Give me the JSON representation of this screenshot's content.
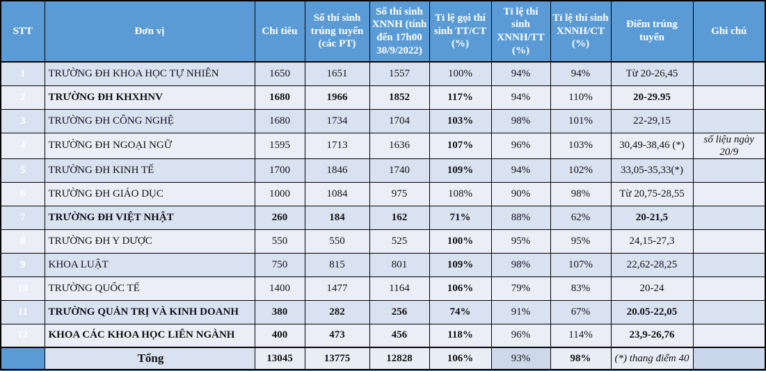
{
  "colors": {
    "header_blue": "#5b9bd5",
    "stripe_odd": "#d9e2f1",
    "stripe_even": "#ebeef7",
    "ratio_col_blue": "#cdd9eb",
    "highlight_orange": "#ffc000",
    "highlight_yellow": "#ffff00",
    "total_light_blue": "#bdd7ee",
    "total_strong_blue": "#2e75b6",
    "alert_red": "#c00000"
  },
  "table": {
    "columns": [
      {
        "key": "stt",
        "label": "STT"
      },
      {
        "key": "name",
        "label": "Đơn vị"
      },
      {
        "key": "chi_tieu",
        "label": "Chỉ tiêu"
      },
      {
        "key": "trung_tuyen",
        "label": "Số thí sinh trúng tuyển (các PT)"
      },
      {
        "key": "xnnh",
        "label": "Số thí sinh XNNH (tính đến 17h00 30/9/2022)"
      },
      {
        "key": "tt_ct",
        "label": "Tỉ lệ gọi thí sinh TT/CT (%)"
      },
      {
        "key": "xnnh_tt",
        "label": "Tỉ lệ thí sinh XNNH/TT (%)"
      },
      {
        "key": "xnnh_ct",
        "label": "Tỉ lệ thí sinh XNNH/CT (%)"
      },
      {
        "key": "diem",
        "label": "Điểm trúng tuyển"
      },
      {
        "key": "ghi_chu",
        "label": "Ghi chú"
      }
    ],
    "rows": [
      {
        "row_class": "odd",
        "cells": {
          "stt": "1",
          "name": "TRƯỜNG ĐH KHOA HỌC TỰ NHIÊN",
          "chi_tieu": "1650",
          "trung_tuyen": "1651",
          "xnnh": "1557",
          "tt_ct": "100%",
          "xnnh_tt": "94%",
          "xnnh_ct": "94%",
          "diem": "Từ 20-26,45",
          "ghi_chu": ""
        },
        "cell_classes": {}
      },
      {
        "row_class": "even",
        "cells": {
          "stt": "2",
          "name": "TRƯỜNG ĐH KHXHNV",
          "chi_tieu": "1680",
          "trung_tuyen": "1966",
          "xnnh": "1852",
          "tt_ct": "117%",
          "xnnh_tt": "94%",
          "xnnh_ct": "110%",
          "diem": "20-29.95",
          "ghi_chu": ""
        },
        "cell_classes": {
          "name": "bg-orange red",
          "chi_tieu": "red",
          "trung_tuyen": "red",
          "xnnh": "red",
          "tt_ct": "red",
          "xnnh_ct": "bg-orange",
          "diem": "red"
        }
      },
      {
        "row_class": "odd",
        "cells": {
          "stt": "3",
          "name": "TRƯỜNG ĐH CÔNG NGHỆ",
          "chi_tieu": "1680",
          "trung_tuyen": "1734",
          "xnnh": "1704",
          "tt_ct": "103%",
          "xnnh_tt": "98%",
          "xnnh_ct": "101%",
          "diem": "22-29,15",
          "ghi_chu": ""
        },
        "cell_classes": {
          "tt_ct": "red"
        }
      },
      {
        "row_class": "even",
        "cells": {
          "stt": "4",
          "name": "TRƯỜNG ĐH NGOẠI NGỮ",
          "chi_tieu": "1595",
          "trung_tuyen": "1713",
          "xnnh": "1636",
          "tt_ct": "107%",
          "xnnh_tt": "96%",
          "xnnh_ct": "103%",
          "diem": "30,49-38,46 (*)",
          "ghi_chu": "số liệu ngày 20/9"
        },
        "cell_classes": {
          "name": "bg-yellow",
          "chi_tieu": "bg-white",
          "trung_tuyen": "bg-white",
          "xnnh": "bg-white",
          "tt_ct": "red",
          "ghi_chu": "bg-yellow note"
        }
      },
      {
        "row_class": "odd",
        "cells": {
          "stt": "5",
          "name": "TRƯỜNG ĐH KINH TẾ",
          "chi_tieu": "1700",
          "trung_tuyen": "1846",
          "xnnh": "1740",
          "tt_ct": "109%",
          "xnnh_tt": "94%",
          "xnnh_ct": "102%",
          "diem": "33,05-35,33(*)",
          "ghi_chu": ""
        },
        "cell_classes": {
          "tt_ct": "red"
        }
      },
      {
        "row_class": "even",
        "cells": {
          "stt": "6",
          "name": "TRƯỜNG ĐH GIÁO DỤC",
          "chi_tieu": "1000",
          "trung_tuyen": "1084",
          "xnnh": "975",
          "tt_ct": "108%",
          "xnnh_tt": "90%",
          "xnnh_ct": "98%",
          "diem": "Từ 20,75-28,55",
          "ghi_chu": ""
        },
        "cell_classes": {}
      },
      {
        "row_class": "odd",
        "cells": {
          "stt": "7",
          "name": "TRƯỜNG ĐH VIỆT NHẬT",
          "chi_tieu": "260",
          "trung_tuyen": "184",
          "xnnh": "162",
          "tt_ct": "71%",
          "xnnh_tt": "88%",
          "xnnh_ct": "62%",
          "diem": "20-21,5",
          "ghi_chu": ""
        },
        "cell_classes": {
          "name": "red",
          "chi_tieu": "red",
          "trung_tuyen": "red",
          "xnnh": "red",
          "tt_ct": "red",
          "diem": "red"
        }
      },
      {
        "row_class": "even",
        "cells": {
          "stt": "8",
          "name": "TRƯỜNG ĐH Y DƯỢC",
          "chi_tieu": "550",
          "trung_tuyen": "550",
          "xnnh": "525",
          "tt_ct": "100%",
          "xnnh_tt": "95%",
          "xnnh_ct": "95%",
          "diem": "24,15-27,3",
          "ghi_chu": ""
        },
        "cell_classes": {
          "tt_ct": "red"
        }
      },
      {
        "row_class": "odd",
        "cells": {
          "stt": "9",
          "name": "KHOA LUẬT",
          "chi_tieu": "750",
          "trung_tuyen": "815",
          "xnnh": "801",
          "tt_ct": "109%",
          "xnnh_tt": "98%",
          "xnnh_ct": "107%",
          "diem": "22,62-28,25",
          "ghi_chu": ""
        },
        "cell_classes": {
          "tt_ct": "red"
        }
      },
      {
        "row_class": "even",
        "cells": {
          "stt": "10",
          "name": "TRƯỜNG QUỐC TẾ",
          "chi_tieu": "1400",
          "trung_tuyen": "1477",
          "xnnh": "1164",
          "tt_ct": "106%",
          "xnnh_tt": "79%",
          "xnnh_ct": "83%",
          "diem": "20-24",
          "ghi_chu": ""
        },
        "cell_classes": {
          "tt_ct": "red"
        }
      },
      {
        "row_class": "odd",
        "cells": {
          "stt": "11",
          "name": "TRƯỜNG QUẢN TRỊ VÀ KINH DOANH",
          "chi_tieu": "380",
          "trung_tuyen": "282",
          "xnnh": "256",
          "tt_ct": "74%",
          "xnnh_tt": "91%",
          "xnnh_ct": "67%",
          "diem": "20.05-22,05",
          "ghi_chu": ""
        },
        "cell_classes": {
          "name": "red",
          "chi_tieu": "red",
          "trung_tuyen": "red",
          "xnnh": "red",
          "tt_ct": "red",
          "diem": "red"
        }
      },
      {
        "row_class": "even",
        "cells": {
          "stt": "12",
          "name": "KHOA CÁC KHOA HỌC LIÊN NGÀNH",
          "chi_tieu": "400",
          "trung_tuyen": "473",
          "xnnh": "456",
          "tt_ct": "118%",
          "xnnh_tt": "96%",
          "xnnh_ct": "114%",
          "diem": "23,9-26,76",
          "ghi_chu": ""
        },
        "cell_classes": {
          "name": "bg-yellow bold",
          "chi_tieu": "red",
          "trung_tuyen": "red",
          "xnnh": "red",
          "tt_ct": "red",
          "xnnh_ct": "bg-yellow",
          "diem": "red"
        }
      }
    ],
    "total_row": {
      "cells": {
        "stt": "",
        "name": "Tổng",
        "chi_tieu": "13045",
        "trung_tuyen": "13775",
        "xnnh": "12828",
        "tt_ct": "106%",
        "xnnh_tt": "93%",
        "xnnh_ct": "98%",
        "diem": "(*) thang điểm 40",
        "ghi_chu": ""
      },
      "cell_classes": {
        "chi_tieu": "bold",
        "trung_tuyen": "bold bg-blue-light",
        "xnnh": "bold bg-blue-strong",
        "tt_ct": "red",
        "xnnh_ct": "bold bg-orange",
        "diem": "italic small"
      }
    }
  }
}
